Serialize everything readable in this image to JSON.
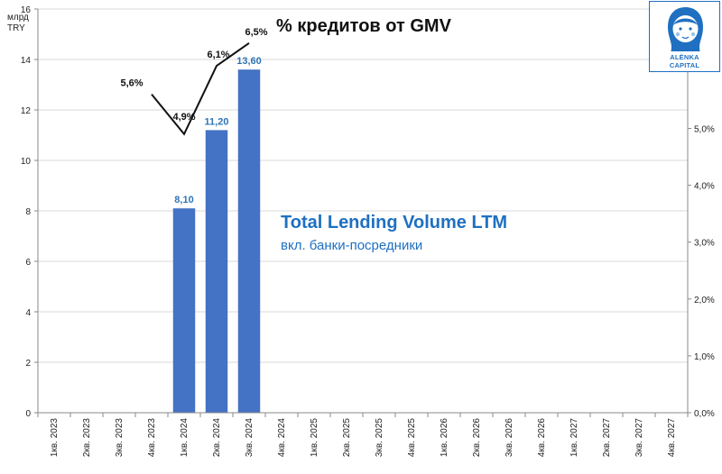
{
  "unit_label": "млрд\nTRY",
  "line_title": "% кредитов от GMV",
  "annotation": {
    "title": "Total Lending Volume LTM",
    "subtitle": "вкл. банки-посредники"
  },
  "logo": {
    "line1": "ALËNKA",
    "line2": "CAPITAL"
  },
  "colors": {
    "bar": "#4472c4",
    "bar_label": "#2e75b6",
    "line": "#111111",
    "annotation": "#1f70c1"
  },
  "chart_data": {
    "type": "bar",
    "categories": [
      "1кв. 2023",
      "2кв. 2023",
      "3кв. 2023",
      "4кв. 2023",
      "1кв. 2024",
      "2кв. 2024",
      "3кв. 2024",
      "4кв. 2024",
      "1кв. 2025",
      "2кв. 2025",
      "3кв. 2025",
      "4кв. 2025",
      "1кв. 2026",
      "2кв. 2026",
      "3кв. 2026",
      "4кв. 2026",
      "1кв. 2027",
      "2кв. 2027",
      "3кв. 2027",
      "4кв. 2027"
    ],
    "bars": {
      "values": [
        null,
        null,
        null,
        null,
        8.1,
        11.2,
        13.6,
        null,
        null,
        null,
        null,
        null,
        null,
        null,
        null,
        null,
        null,
        null,
        null,
        null
      ],
      "labels": [
        "",
        "",
        "",
        "",
        "8,10",
        "11,20",
        "13,60",
        "",
        "",
        "",
        "",
        "",
        "",
        "",
        "",
        "",
        "",
        "",
        "",
        ""
      ]
    },
    "line": {
      "points": [
        {
          "x": 3.5,
          "value": 5.6,
          "label": "5,6%"
        },
        {
          "x": 4.5,
          "value": 4.9,
          "label": "4,9%"
        },
        {
          "x": 5.5,
          "value": 6.1,
          "label": "6,1%"
        },
        {
          "x": 6.5,
          "value": 6.5,
          "label": "6,5%"
        }
      ],
      "note": "line starts near end of 4кв. 2023 and continues through 3кв. 2024"
    },
    "y_left": {
      "min": 0,
      "max": 16,
      "ticks": [
        "0",
        "2",
        "4",
        "6",
        "8",
        "10",
        "12",
        "14",
        "16"
      ]
    },
    "y_right": {
      "min": 0,
      "max": 7.1,
      "ticks": [
        "0,0%",
        "1,0%",
        "2,0%",
        "3,0%",
        "4,0%",
        "5,0%"
      ]
    },
    "grid": true
  }
}
